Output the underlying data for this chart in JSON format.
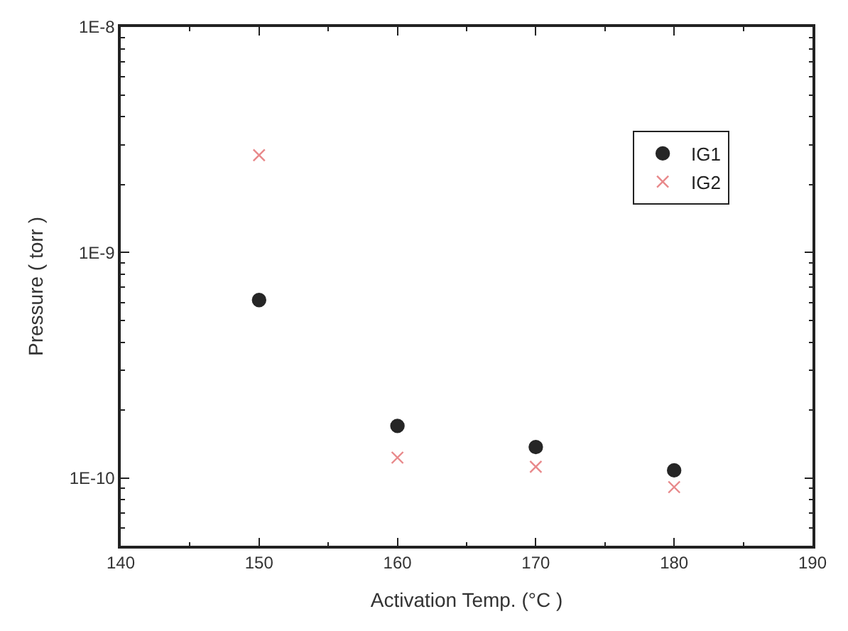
{
  "chart_data": {
    "type": "scatter",
    "xlabel": "Activation Temp. (°C )",
    "ylabel": "Pressure ( torr )",
    "x": [
      150,
      160,
      170,
      180
    ],
    "series": [
      {
        "name": "IG1",
        "color": "#262626",
        "marker": "circle",
        "values": [
          6.15e-10,
          1.7e-10,
          1.37e-10,
          1.08e-10
        ]
      },
      {
        "name": "IG2",
        "color": "#e8888a",
        "marker": "cross",
        "values": [
          2.7e-09,
          1.23e-10,
          1.12e-10,
          9.1e-11
        ]
      }
    ],
    "log": "y",
    "xlim": [
      140,
      190
    ],
    "xticks": [
      140,
      150,
      160,
      170,
      180,
      190
    ],
    "ylim": [
      5e-11,
      1e-08
    ],
    "yticks": [
      {
        "value": 1e-10,
        "label": "1E-10"
      },
      {
        "value": 1e-09,
        "label": "1E-9"
      },
      {
        "value": 1e-08,
        "label": "1E-8"
      }
    ],
    "legend": "top right"
  }
}
